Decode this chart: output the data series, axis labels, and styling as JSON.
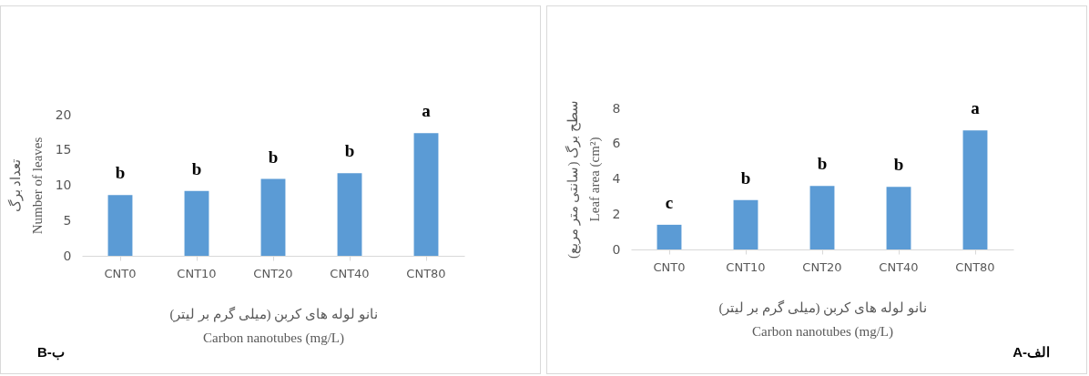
{
  "chart_data": [
    {
      "type": "bar",
      "categories": [
        "CNT0",
        "CNT10",
        "CNT20",
        "CNT40",
        "CNT80"
      ],
      "values": [
        8.6,
        9.2,
        10.9,
        11.7,
        17.4
      ],
      "color": "#5b9bd5",
      "ylabel": "تعداد برگ\nNumber of leaves",
      "xlabel": "نانو لوله های کربن (میلی گرم بر لیتر)\nCarbon nanotubes (mg/L)",
      "ylim": [
        0,
        20
      ],
      "yticks": [
        0,
        5,
        10,
        15,
        20
      ],
      "value_labels": [
        "b",
        "b",
        "b",
        "b",
        "a"
      ],
      "annotations": [
        "B-ب"
      ]
    },
    {
      "type": "bar",
      "categories": [
        "CNT0",
        "CNT10",
        "CNT20",
        "CNT40",
        "CNT80"
      ],
      "values": [
        1.4,
        2.8,
        3.6,
        3.55,
        6.75
      ],
      "color": "#5b9bd5",
      "ylabel": "سطح برگ (سانتی متر مربع)\nLeaf area (cm²)",
      "xlabel": "نانو لوله های کربن (میلی گرم بر لیتر)\nCarbon nanotubes (mg/L)",
      "ylim": [
        0,
        8
      ],
      "yticks": [
        0,
        2,
        4,
        6,
        8
      ],
      "value_labels": [
        "c",
        "b",
        "b",
        "b",
        "a"
      ],
      "annotations": [
        "A-الف"
      ]
    }
  ]
}
